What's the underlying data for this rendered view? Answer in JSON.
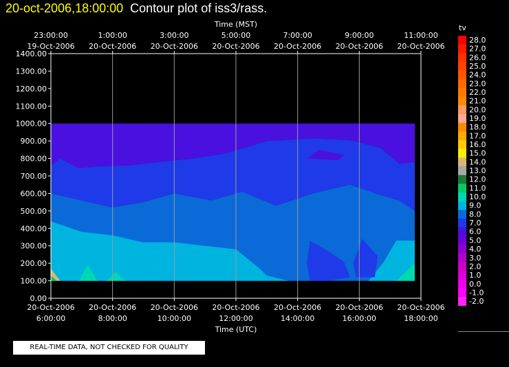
{
  "header": {
    "date_label": "20-oct-2006,18:00:00",
    "title": "Contour plot of iss3/rass."
  },
  "footer": {
    "quality_note": "REAL-TIME DATA, NOT CHECKED FOR QUALITY"
  },
  "colors": {
    "background": "#000000",
    "title_date": "#ffff00"
  },
  "chart_data": {
    "type": "heatmap",
    "title": "Contour plot of iss3/rass.",
    "xlabel_top": "Time (MST)",
    "xlabel": "Time (UTC)",
    "ylabel": "",
    "ylim": [
      0,
      1400
    ],
    "xlim_hours": [
      6,
      18
    ],
    "grid": "vertical lines at each x tick",
    "y_ticks": [
      "0.00",
      "100.00",
      "200.00",
      "300.00",
      "400.00",
      "500.00",
      "600.00",
      "700.00",
      "800.00",
      "900.00",
      "1000.00",
      "1100.00",
      "1200.00",
      "1300.00",
      "1400.00"
    ],
    "x_ticks_bottom": [
      {
        "date": "20-Oct-2006",
        "time": "6:00:00"
      },
      {
        "date": "20-Oct-2006",
        "time": "8:00:00"
      },
      {
        "date": "20-Oct-2006",
        "time": "10:00:00"
      },
      {
        "date": "20-Oct-2006",
        "time": "12:00:00"
      },
      {
        "date": "20-Oct-2006",
        "time": "14:00:00"
      },
      {
        "date": "20-Oct-2006",
        "time": "16:00:00"
      },
      {
        "date": "20-Oct-2006",
        "time": "18:00:00"
      }
    ],
    "x_ticks_top": [
      {
        "time": "23:00:00",
        "date": "19-Oct-2006"
      },
      {
        "time": "1:00:00",
        "date": "20-Oct-2006"
      },
      {
        "time": "3:00:00",
        "date": "20-Oct-2006"
      },
      {
        "time": "5:00:00",
        "date": "20-Oct-2006"
      },
      {
        "time": "7:00:00",
        "date": "20-Oct-2006"
      },
      {
        "time": "9:00:00",
        "date": "20-Oct-2006"
      },
      {
        "time": "11:00:00",
        "date": "20-Oct-2006"
      }
    ],
    "data_extent": {
      "x_hours": [
        6,
        17.8
      ],
      "y": [
        100,
        1000
      ]
    },
    "colorbar": {
      "label": "tv",
      "levels": [
        {
          "label": "28.0",
          "color": "#ff0000"
        },
        {
          "label": "27.0",
          "color": "#ff1a00"
        },
        {
          "label": "26.0",
          "color": "#ff3300"
        },
        {
          "label": "25.0",
          "color": "#ff4400"
        },
        {
          "label": "24.0",
          "color": "#ff5500"
        },
        {
          "label": "23.0",
          "color": "#ff6a00"
        },
        {
          "label": "22.0",
          "color": "#ff7a00"
        },
        {
          "label": "21.0",
          "color": "#ff8800"
        },
        {
          "label": "20.0",
          "color": "#ff9966"
        },
        {
          "label": "19.0",
          "color": "#ffaa99"
        },
        {
          "label": "18.0",
          "color": "#ff8a00"
        },
        {
          "label": "17.0",
          "color": "#ffaa00"
        },
        {
          "label": "16.0",
          "color": "#ffcc00"
        },
        {
          "label": "15.0",
          "color": "#ffee00"
        },
        {
          "label": "14.0",
          "color": "#d8b878"
        },
        {
          "label": "13.0",
          "color": "#a8a8a8"
        },
        {
          "label": "12.0",
          "color": "#1a7a3a"
        },
        {
          "label": "11.0",
          "color": "#00cc66"
        },
        {
          "label": "10.0",
          "color": "#00d8b0"
        },
        {
          "label": "9.0",
          "color": "#00b4e0"
        },
        {
          "label": "8.0",
          "color": "#0a6ad8"
        },
        {
          "label": "7.0",
          "color": "#1f3ae8"
        },
        {
          "label": "6.0",
          "color": "#4a10e0"
        },
        {
          "label": "5.0",
          "color": "#6a00d8"
        },
        {
          "label": "4.0",
          "color": "#9000d0"
        },
        {
          "label": "3.0",
          "color": "#b000cc"
        },
        {
          "label": "2.0",
          "color": "#cc00cc"
        },
        {
          "label": "1.0",
          "color": "#dd00dd"
        },
        {
          "label": "0.0",
          "color": "#ee00ee"
        },
        {
          "label": "-1.0",
          "color": "#ff00ff"
        },
        {
          "label": "-2.0",
          "color": "#ff22ff"
        }
      ]
    },
    "regions": [
      {
        "name": "tv 5-6",
        "color": "#4a10e0",
        "points": [
          [
            6,
            1000
          ],
          [
            17.8,
            1000
          ],
          [
            17.8,
            780
          ],
          [
            17.3,
            770
          ],
          [
            16.7,
            860
          ],
          [
            15.7,
            905
          ],
          [
            14.5,
            915
          ],
          [
            13,
            900
          ],
          [
            11.7,
            830
          ],
          [
            10.6,
            800
          ],
          [
            9.5,
            780
          ],
          [
            8.5,
            760
          ],
          [
            7.5,
            755
          ],
          [
            6.9,
            745
          ],
          [
            6.3,
            800
          ],
          [
            6,
            760
          ]
        ]
      },
      {
        "name": "tv 7-8",
        "color": "#1f3ae8",
        "points": [
          [
            6,
            760
          ],
          [
            6.3,
            800
          ],
          [
            6.9,
            745
          ],
          [
            7.5,
            755
          ],
          [
            8.5,
            760
          ],
          [
            9.5,
            780
          ],
          [
            10.6,
            800
          ],
          [
            11.7,
            830
          ],
          [
            13,
            900
          ],
          [
            14.5,
            915
          ],
          [
            15.7,
            905
          ],
          [
            16.7,
            860
          ],
          [
            17.3,
            770
          ],
          [
            17.8,
            780
          ],
          [
            17.8,
            500
          ],
          [
            17.3,
            560
          ],
          [
            16.7,
            590
          ],
          [
            15.7,
            650
          ],
          [
            14.5,
            600
          ],
          [
            13.3,
            530
          ],
          [
            12.2,
            610
          ],
          [
            11.2,
            560
          ],
          [
            10,
            600
          ],
          [
            9,
            550
          ],
          [
            8,
            520
          ],
          [
            7,
            560
          ],
          [
            6,
            600
          ]
        ]
      },
      {
        "name": "tv 8-9",
        "color": "#0a6ad8",
        "points": [
          [
            6,
            600
          ],
          [
            7,
            560
          ],
          [
            8,
            520
          ],
          [
            9,
            550
          ],
          [
            10,
            600
          ],
          [
            11.2,
            560
          ],
          [
            12.2,
            610
          ],
          [
            13.3,
            530
          ],
          [
            14.5,
            600
          ],
          [
            15.7,
            650
          ],
          [
            16.7,
            590
          ],
          [
            17.3,
            560
          ],
          [
            17.8,
            500
          ],
          [
            17.8,
            100
          ],
          [
            6,
            100
          ]
        ]
      },
      {
        "name": "tv 9-10",
        "color": "#00b4e0",
        "points": [
          [
            6,
            440
          ],
          [
            7,
            380
          ],
          [
            8,
            360
          ],
          [
            9,
            320
          ],
          [
            10,
            320
          ],
          [
            11,
            300
          ],
          [
            12,
            280
          ],
          [
            12.7,
            180
          ],
          [
            13,
            130
          ],
          [
            13.7,
            100
          ],
          [
            6,
            100
          ]
        ]
      },
      {
        "name": "tv 9-10 east",
        "color": "#00b4e0",
        "points": [
          [
            16.3,
            100
          ],
          [
            16.8,
            210
          ],
          [
            17.2,
            330
          ],
          [
            17.8,
            330
          ],
          [
            17.8,
            100
          ]
        ]
      },
      {
        "name": "tv 7-8 pocket",
        "color": "#1f3ae8",
        "points": [
          [
            14.4,
            330
          ],
          [
            14.9,
            280
          ],
          [
            15.5,
            210
          ],
          [
            15.7,
            120
          ],
          [
            15,
            100
          ],
          [
            14.4,
            100
          ],
          [
            14.3,
            200
          ]
        ]
      },
      {
        "name": "tv 7-8 pocket 2",
        "color": "#1f3ae8",
        "points": [
          [
            16.1,
            340
          ],
          [
            16.6,
            240
          ],
          [
            16.5,
            120
          ],
          [
            15.9,
            120
          ],
          [
            15.8,
            200
          ]
        ]
      },
      {
        "name": "tv 10-11",
        "color": "#00d8b0",
        "points": [
          [
            6.9,
            100
          ],
          [
            7.2,
            190
          ],
          [
            7.5,
            100
          ]
        ]
      },
      {
        "name": "tv 10-11 b",
        "color": "#00d8b0",
        "points": [
          [
            7.8,
            100
          ],
          [
            8.1,
            150
          ],
          [
            8.4,
            100
          ]
        ]
      },
      {
        "name": "tv 10-11 c",
        "color": "#00d8b0",
        "points": [
          [
            17.2,
            100
          ],
          [
            17.8,
            200
          ],
          [
            17.8,
            100
          ]
        ]
      },
      {
        "name": "tv 6-7 pocket",
        "color": "#4a10e0",
        "points": [
          [
            14.3,
            800
          ],
          [
            14.7,
            850
          ],
          [
            15.5,
            820
          ],
          [
            15.3,
            790
          ]
        ]
      },
      {
        "name": "tv 14-15 corner",
        "color": "#d8b878",
        "points": [
          [
            6,
            100
          ],
          [
            6,
            170
          ],
          [
            6.3,
            100
          ]
        ]
      },
      {
        "name": "tv 11-12 corner",
        "color": "#00cc66",
        "points": [
          [
            6.2,
            100
          ],
          [
            6,
            130
          ],
          [
            6,
            100
          ]
        ]
      }
    ]
  }
}
